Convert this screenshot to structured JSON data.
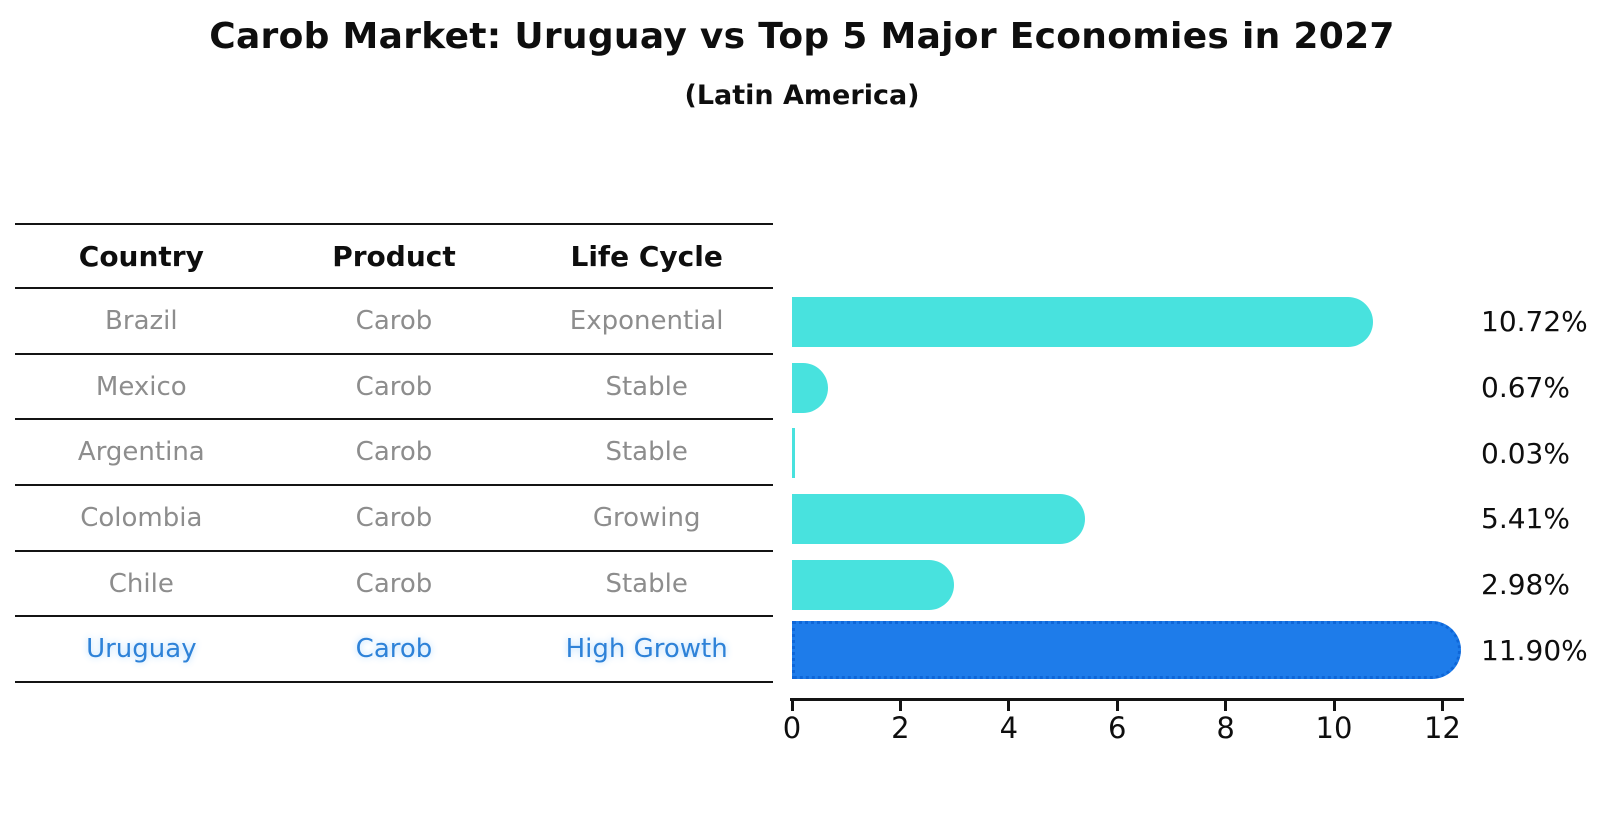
{
  "title": "Carob Market: Uruguay vs Top 5 Major Economies in 2027",
  "subtitle": "(Latin America)",
  "table": {
    "columns": [
      "Country",
      "Product",
      "Life Cycle"
    ],
    "rows": [
      {
        "country": "Brazil",
        "product": "Carob",
        "life_cycle": "Exponential",
        "highlight": false
      },
      {
        "country": "Mexico",
        "product": "Carob",
        "life_cycle": "Stable",
        "highlight": false
      },
      {
        "country": "Argentina",
        "product": "Carob",
        "life_cycle": "Stable",
        "highlight": false
      },
      {
        "country": "Colombia",
        "product": "Carob",
        "life_cycle": "Growing",
        "highlight": false
      },
      {
        "country": "Chile",
        "product": "Carob",
        "life_cycle": "Stable",
        "highlight": false
      },
      {
        "country": "Uruguay",
        "product": "Carob",
        "life_cycle": "High Growth",
        "highlight": true
      }
    ]
  },
  "chart_data": {
    "type": "bar",
    "orientation": "horizontal",
    "title": "Carob Market: Uruguay vs Top 5 Major Economies in 2027",
    "subtitle": "(Latin America)",
    "categories": [
      "Brazil",
      "Mexico",
      "Argentina",
      "Colombia",
      "Chile",
      "Uruguay"
    ],
    "values": [
      10.72,
      0.67,
      0.03,
      5.41,
      2.98,
      11.9
    ],
    "value_labels": [
      "10.72%",
      "0.67%",
      "0.03%",
      "5.41%",
      "2.98%",
      "11.90%"
    ],
    "xlabel": "",
    "ylabel": "",
    "xlim": [
      0,
      12.5
    ],
    "x_ticks": [
      0,
      2,
      4,
      6,
      8,
      10,
      12
    ],
    "grid": false,
    "legend": false,
    "highlight_category": "Uruguay",
    "colors": {
      "background": "#ffffff",
      "bar_default": "#48E2DE",
      "bar_highlight": "#1E7CEA",
      "bar_highlight_border": "#0e66d8",
      "highlight_text": "#2e82d8",
      "row_text": "#8d8d8d",
      "axis_text": "#0e0e0e"
    }
  }
}
